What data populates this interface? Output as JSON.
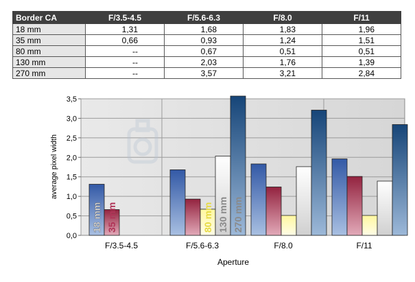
{
  "table": {
    "headers": [
      "Border CA",
      "F/3.5-4.5",
      "F/5.6-6.3",
      "F/8.0",
      "F/11"
    ],
    "rows": [
      [
        "18 mm",
        "1,31",
        "1,68",
        "1,83",
        "1,96"
      ],
      [
        "35 mm",
        "0,66",
        "0,93",
        "1,24",
        "1,51"
      ],
      [
        "80 mm",
        "--",
        "0,67",
        "0,51",
        "0,51"
      ],
      [
        "130 mm",
        "--",
        "2,03",
        "1,76",
        "1,39"
      ],
      [
        "270 mm",
        "--",
        "3,57",
        "3,21",
        "2,84"
      ]
    ]
  },
  "chart_data": {
    "type": "bar",
    "xlabel": "Aperture",
    "ylabel": "average pixel width",
    "categories": [
      "F/3.5-4.5",
      "F/5.6-6.3",
      "F/8.0",
      "F/11"
    ],
    "ylim": [
      0,
      3.5
    ],
    "yticks": [
      "0,0",
      "0,5",
      "1,0",
      "1,5",
      "2,0",
      "2,5",
      "3,0",
      "3,5"
    ],
    "grid": true,
    "legend": "labels on first bars",
    "series": [
      {
        "name": "18 mm",
        "values": [
          1.31,
          1.68,
          1.83,
          1.96
        ],
        "color": "#3d5fa8"
      },
      {
        "name": "35 mm",
        "values": [
          0.66,
          0.93,
          1.24,
          1.51
        ],
        "color": "#8e2440"
      },
      {
        "name": "80 mm",
        "values": [
          null,
          0.67,
          0.51,
          0.51
        ],
        "color": "#fff48a"
      },
      {
        "name": "130 mm",
        "values": [
          null,
          2.03,
          1.76,
          1.39
        ],
        "color": "#f0f0f0"
      },
      {
        "name": "270 mm",
        "values": [
          null,
          3.57,
          3.21,
          2.84
        ],
        "color": "#1d4c82"
      }
    ]
  }
}
